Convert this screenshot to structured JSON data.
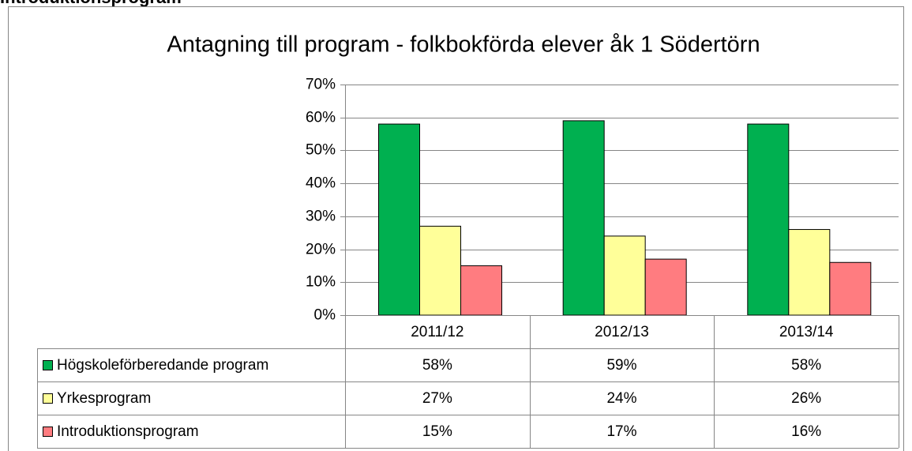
{
  "heading": "Introduktionsprogram",
  "chart_data": {
    "type": "bar",
    "title": "Antagning till program - folkbokförda elever åk 1 Södertörn",
    "categories": [
      "2011/12",
      "2012/13",
      "2013/14"
    ],
    "series": [
      {
        "name": "Högskoleförberedande program",
        "color": "#00b050",
        "values": [
          58,
          59,
          58
        ],
        "value_labels": [
          "58%",
          "59%",
          "58%"
        ]
      },
      {
        "name": "Yrkesprogram",
        "color": "#ffff99",
        "values": [
          27,
          24,
          26
        ],
        "value_labels": [
          "27%",
          "24%",
          "26%"
        ]
      },
      {
        "name": "Introduktionsprogram",
        "color": "#ff7c80",
        "values": [
          15,
          17,
          16
        ],
        "value_labels": [
          "15%",
          "17%",
          "16%"
        ]
      }
    ],
    "ylim": [
      0,
      70
    ],
    "yticks": [
      {
        "value": 0,
        "label": "0%"
      },
      {
        "value": 10,
        "label": "10%"
      },
      {
        "value": 20,
        "label": "20%"
      },
      {
        "value": 30,
        "label": "30%"
      },
      {
        "value": 40,
        "label": "40%"
      },
      {
        "value": 50,
        "label": "50%"
      },
      {
        "value": 60,
        "label": "60%"
      },
      {
        "value": 70,
        "label": "70%"
      }
    ],
    "grid": true
  }
}
